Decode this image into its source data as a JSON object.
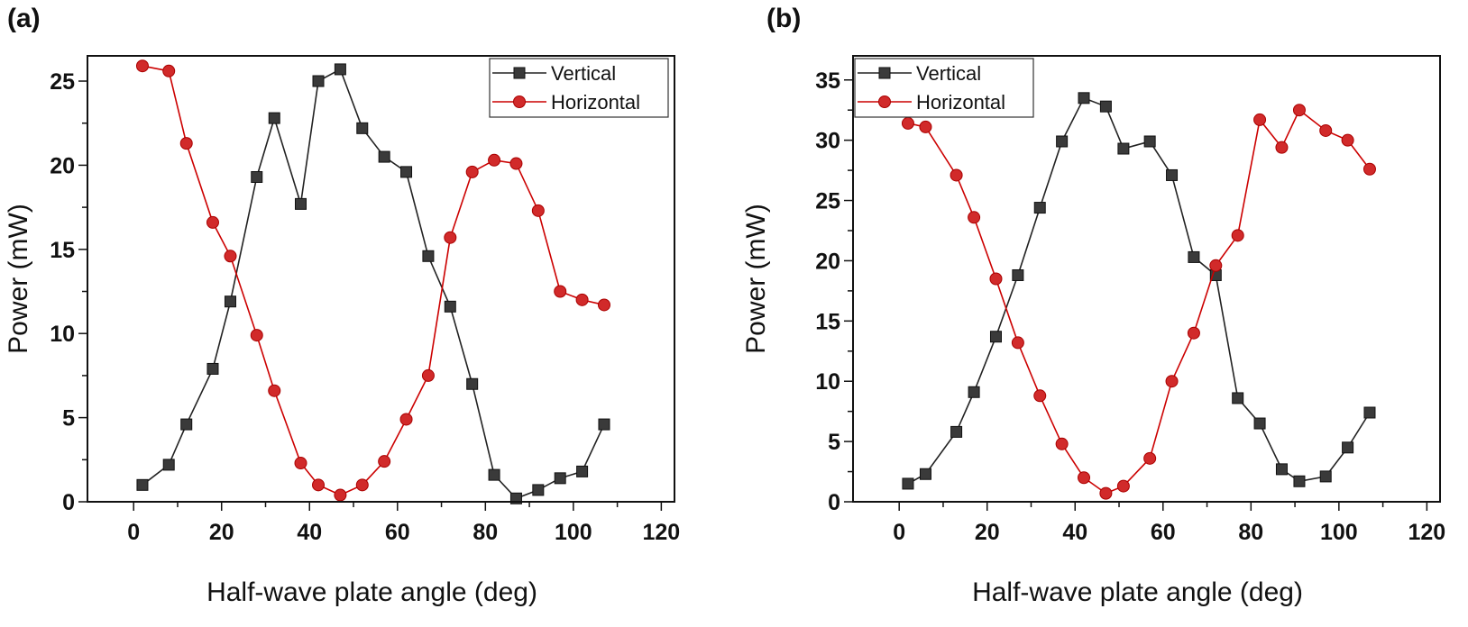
{
  "chart_data": [
    {
      "type": "line",
      "panel_label": "(a)",
      "xlabel": "Half-wave plate angle (deg)",
      "ylabel": "Power (mW)",
      "xlim": [
        -10.5,
        123
      ],
      "ylim": [
        0,
        26.5
      ],
      "xticks": [
        0,
        20,
        40,
        60,
        80,
        100,
        120
      ],
      "yticks": [
        0,
        5,
        10,
        15,
        20,
        25
      ],
      "grid": false,
      "legend_position": "top-right",
      "series": [
        {
          "name": "Vertical",
          "color": "#222222",
          "marker": "square",
          "x": [
            2,
            8,
            12,
            18,
            22,
            28,
            32,
            38,
            42,
            47,
            52,
            57,
            62,
            67,
            72,
            77,
            82,
            87,
            92,
            97,
            102,
            107
          ],
          "y": [
            1.0,
            2.2,
            4.6,
            7.9,
            11.9,
            19.3,
            22.8,
            17.7,
            25.0,
            25.7,
            22.2,
            20.5,
            19.6,
            14.6,
            11.6,
            7.0,
            1.6,
            0.2,
            0.7,
            1.4,
            1.8,
            4.6
          ]
        },
        {
          "name": "Horizontal",
          "color": "#cc0000",
          "marker": "circle",
          "x": [
            2,
            8,
            12,
            18,
            22,
            28,
            32,
            38,
            42,
            47,
            52,
            57,
            62,
            67,
            72,
            77,
            82,
            87,
            92,
            97,
            102,
            107
          ],
          "y": [
            25.9,
            25.6,
            21.3,
            16.6,
            14.6,
            9.9,
            6.6,
            2.3,
            1.0,
            0.4,
            1.0,
            2.4,
            4.9,
            7.5,
            15.7,
            19.6,
            20.3,
            20.1,
            17.3,
            12.5,
            12.0,
            11.7
          ]
        }
      ]
    },
    {
      "type": "line",
      "panel_label": "(b)",
      "xlabel": "Half-wave plate angle (deg)",
      "ylabel": "Power (mW)",
      "xlim": [
        -10.5,
        123
      ],
      "ylim": [
        0,
        37
      ],
      "xticks": [
        0,
        20,
        40,
        60,
        80,
        100,
        120
      ],
      "yticks": [
        0,
        5,
        10,
        15,
        20,
        25,
        30,
        35
      ],
      "grid": false,
      "legend_position": "top-left",
      "series": [
        {
          "name": "Vertical",
          "color": "#222222",
          "marker": "square",
          "x": [
            2,
            6,
            13,
            17,
            22,
            27,
            32,
            37,
            42,
            47,
            51,
            57,
            62,
            67,
            72,
            77,
            82,
            87,
            91,
            97,
            102,
            107
          ],
          "y": [
            1.5,
            2.3,
            5.8,
            9.1,
            13.7,
            18.8,
            24.4,
            29.9,
            33.5,
            32.8,
            29.3,
            29.9,
            27.1,
            20.3,
            18.8,
            8.6,
            6.5,
            2.7,
            1.7,
            2.1,
            4.5,
            7.4
          ]
        },
        {
          "name": "Horizontal",
          "color": "#cc0000",
          "marker": "circle",
          "x": [
            2,
            6,
            13,
            17,
            22,
            27,
            32,
            37,
            42,
            47,
            51,
            57,
            62,
            67,
            72,
            77,
            82,
            87,
            91,
            97,
            102,
            107
          ],
          "y": [
            31.4,
            31.1,
            27.1,
            23.6,
            18.5,
            13.2,
            8.8,
            4.8,
            2.0,
            0.7,
            1.3,
            3.6,
            10.0,
            14.0,
            19.6,
            22.1,
            31.7,
            29.4,
            32.5,
            30.8,
            30.0,
            27.6
          ]
        }
      ]
    }
  ]
}
